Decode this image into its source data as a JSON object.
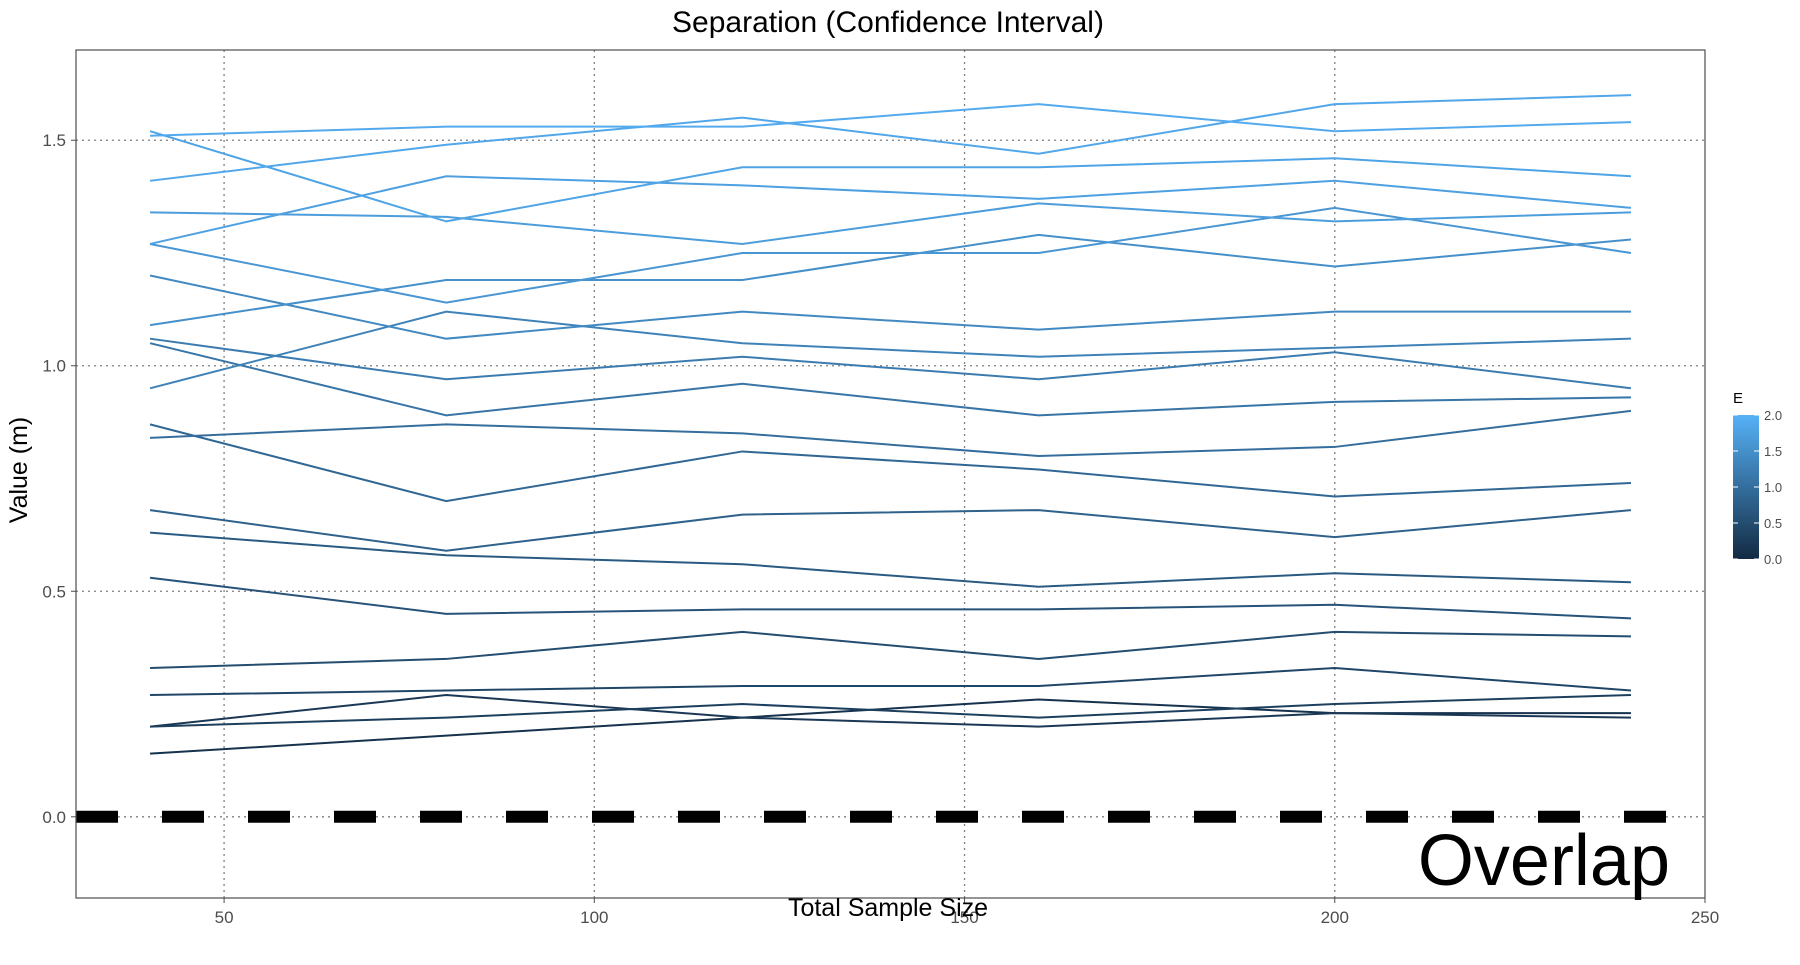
{
  "chart_data": {
    "type": "line",
    "title": "Separation (Confidence Interval)",
    "xlabel": "Total Sample Size",
    "ylabel": "Value (m)",
    "xlim": [
      30,
      250
    ],
    "ylim": [
      -0.18,
      1.7
    ],
    "x_ticks": [
      50,
      100,
      150,
      200,
      250
    ],
    "y_ticks": [
      0.0,
      0.5,
      1.0,
      1.5
    ],
    "x_tick_labels": [
      "50",
      "100",
      "150",
      "200",
      "250"
    ],
    "y_tick_labels": [
      "0.0",
      "0.5",
      "1.0",
      "1.5"
    ],
    "grid": "dotted major gridlines",
    "x": [
      40,
      80,
      120,
      160,
      200,
      240
    ],
    "reference_line": {
      "y": 0.0,
      "style": "dashed",
      "color": "#000000"
    },
    "annotation": {
      "text": "Overlap",
      "position": "bottom-right"
    },
    "legend": {
      "title": "E",
      "position": "right",
      "type": "colorbar",
      "ticks": [
        0.0,
        0.5,
        1.0,
        1.5,
        2.0
      ],
      "tick_labels": [
        "0.0",
        "0.5",
        "1.0",
        "1.5",
        "2.0"
      ],
      "low_color": "#132B43",
      "high_color": "#56B1F7"
    },
    "series": [
      {
        "e": 0.1,
        "values": [
          0.14,
          0.18,
          0.22,
          0.26,
          0.23,
          0.23
        ]
      },
      {
        "e": 0.2,
        "values": [
          0.2,
          0.27,
          0.22,
          0.2,
          0.23,
          0.22
        ]
      },
      {
        "e": 0.3,
        "values": [
          0.2,
          0.22,
          0.25,
          0.22,
          0.25,
          0.27
        ]
      },
      {
        "e": 0.4,
        "values": [
          0.27,
          0.28,
          0.29,
          0.29,
          0.33,
          0.28
        ]
      },
      {
        "e": 0.5,
        "values": [
          0.33,
          0.35,
          0.41,
          0.35,
          0.41,
          0.4
        ]
      },
      {
        "e": 0.6,
        "values": [
          0.53,
          0.45,
          0.46,
          0.46,
          0.47,
          0.44
        ]
      },
      {
        "e": 0.7,
        "values": [
          0.63,
          0.58,
          0.56,
          0.51,
          0.54,
          0.52
        ]
      },
      {
        "e": 0.8,
        "values": [
          0.68,
          0.59,
          0.67,
          0.68,
          0.62,
          0.68
        ]
      },
      {
        "e": 0.9,
        "values": [
          0.87,
          0.7,
          0.81,
          0.77,
          0.71,
          0.74
        ]
      },
      {
        "e": 1.0,
        "values": [
          0.84,
          0.87,
          0.85,
          0.8,
          0.82,
          0.9
        ]
      },
      {
        "e": 1.1,
        "values": [
          1.05,
          0.89,
          0.96,
          0.89,
          0.92,
          0.93
        ]
      },
      {
        "e": 1.2,
        "values": [
          1.06,
          0.97,
          1.02,
          0.97,
          1.03,
          0.95
        ]
      },
      {
        "e": 1.3,
        "values": [
          0.95,
          1.12,
          1.05,
          1.02,
          1.04,
          1.06
        ]
      },
      {
        "e": 1.4,
        "values": [
          1.2,
          1.06,
          1.12,
          1.08,
          1.12,
          1.12
        ]
      },
      {
        "e": 1.5,
        "values": [
          1.09,
          1.19,
          1.19,
          1.29,
          1.22,
          1.28
        ]
      },
      {
        "e": 1.6,
        "values": [
          1.27,
          1.14,
          1.25,
          1.25,
          1.35,
          1.25
        ]
      },
      {
        "e": 1.7,
        "values": [
          1.34,
          1.33,
          1.27,
          1.36,
          1.32,
          1.34
        ]
      },
      {
        "e": 1.75,
        "values": [
          1.27,
          1.42,
          1.4,
          1.37,
          1.41,
          1.35
        ]
      },
      {
        "e": 1.8,
        "values": [
          1.52,
          1.32,
          1.44,
          1.44,
          1.46,
          1.42
        ]
      },
      {
        "e": 1.85,
        "values": [
          1.41,
          1.49,
          1.55,
          1.47,
          1.58,
          1.6
        ]
      },
      {
        "e": 1.9,
        "values": [
          1.51,
          1.53,
          1.53,
          1.58,
          1.52,
          1.54
        ]
      }
    ]
  }
}
